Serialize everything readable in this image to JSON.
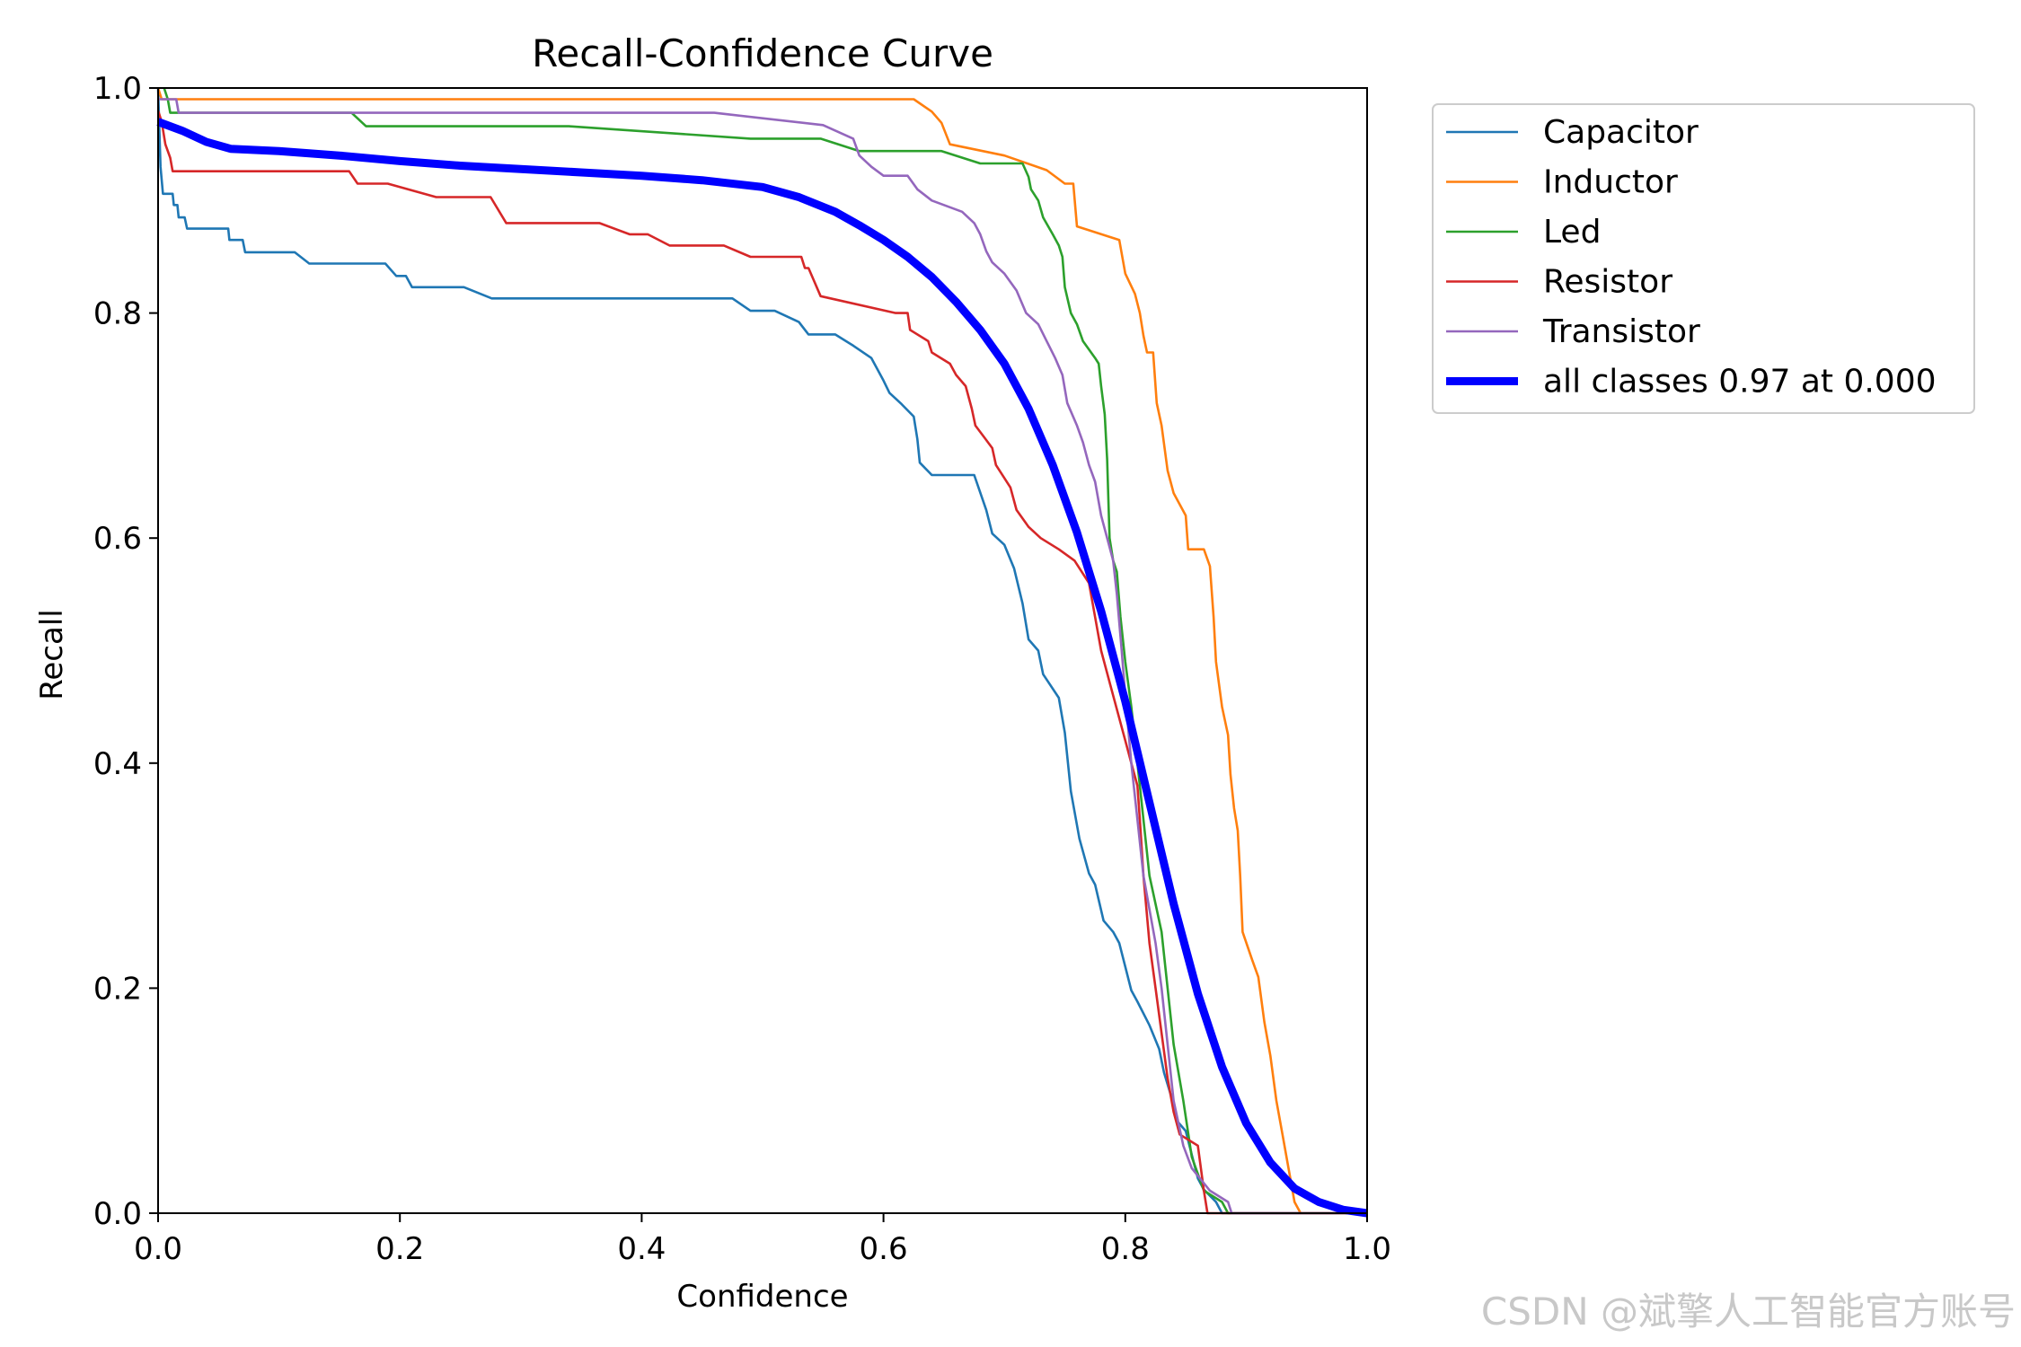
{
  "chart_data": {
    "type": "line",
    "title": "Recall-Confidence Curve",
    "xlabel": "Confidence",
    "ylabel": "Recall",
    "xlim": [
      0.0,
      1.0
    ],
    "ylim": [
      0.0,
      1.0
    ],
    "xticks": [
      "0.0",
      "0.2",
      "0.4",
      "0.6",
      "0.8",
      "1.0"
    ],
    "yticks": [
      "0.0",
      "0.2",
      "0.4",
      "0.6",
      "0.8",
      "1.0"
    ],
    "grid": false,
    "legend_position": "outside-top-right",
    "series": [
      {
        "name": "Capacitor",
        "color": "#1f77b4",
        "bold": false,
        "points": [
          [
            0,
            1.0
          ],
          [
            0.002,
            0.93
          ],
          [
            0.004,
            0.906
          ],
          [
            0.012,
            0.906
          ],
          [
            0.013,
            0.896
          ],
          [
            0.016,
            0.896
          ],
          [
            0.017,
            0.885
          ],
          [
            0.022,
            0.885
          ],
          [
            0.024,
            0.875
          ],
          [
            0.058,
            0.875
          ],
          [
            0.059,
            0.865
          ],
          [
            0.07,
            0.865
          ],
          [
            0.072,
            0.854
          ],
          [
            0.113,
            0.854
          ],
          [
            0.125,
            0.844
          ],
          [
            0.188,
            0.844
          ],
          [
            0.197,
            0.833
          ],
          [
            0.205,
            0.833
          ],
          [
            0.21,
            0.823
          ],
          [
            0.253,
            0.823
          ],
          [
            0.276,
            0.813
          ],
          [
            0.475,
            0.813
          ],
          [
            0.49,
            0.802
          ],
          [
            0.51,
            0.802
          ],
          [
            0.53,
            0.792
          ],
          [
            0.538,
            0.781
          ],
          [
            0.56,
            0.781
          ],
          [
            0.575,
            0.771
          ],
          [
            0.59,
            0.76
          ],
          [
            0.6,
            0.74
          ],
          [
            0.605,
            0.729
          ],
          [
            0.615,
            0.719
          ],
          [
            0.625,
            0.708
          ],
          [
            0.628,
            0.688
          ],
          [
            0.63,
            0.667
          ],
          [
            0.64,
            0.656
          ],
          [
            0.675,
            0.656
          ],
          [
            0.685,
            0.625
          ],
          [
            0.69,
            0.604
          ],
          [
            0.7,
            0.594
          ],
          [
            0.708,
            0.573
          ],
          [
            0.715,
            0.542
          ],
          [
            0.72,
            0.51
          ],
          [
            0.728,
            0.5
          ],
          [
            0.732,
            0.479
          ],
          [
            0.745,
            0.458
          ],
          [
            0.75,
            0.427
          ],
          [
            0.755,
            0.375
          ],
          [
            0.762,
            0.333
          ],
          [
            0.77,
            0.302
          ],
          [
            0.775,
            0.292
          ],
          [
            0.782,
            0.26
          ],
          [
            0.79,
            0.25
          ],
          [
            0.795,
            0.24
          ],
          [
            0.8,
            0.219
          ],
          [
            0.805,
            0.198
          ],
          [
            0.81,
            0.188
          ],
          [
            0.82,
            0.167
          ],
          [
            0.828,
            0.146
          ],
          [
            0.832,
            0.125
          ],
          [
            0.838,
            0.104
          ],
          [
            0.842,
            0.083
          ],
          [
            0.85,
            0.073
          ],
          [
            0.855,
            0.052
          ],
          [
            0.86,
            0.031
          ],
          [
            0.865,
            0.021
          ],
          [
            0.875,
            0.01
          ],
          [
            0.88,
            0.0
          ],
          [
            1.0,
            0.0
          ]
        ]
      },
      {
        "name": "Inductor",
        "color": "#ff7f0e",
        "bold": false,
        "points": [
          [
            0,
            1.0
          ],
          [
            0.003,
            0.99
          ],
          [
            0.625,
            0.99
          ],
          [
            0.64,
            0.979
          ],
          [
            0.648,
            0.969
          ],
          [
            0.655,
            0.95
          ],
          [
            0.7,
            0.94
          ],
          [
            0.735,
            0.927
          ],
          [
            0.75,
            0.915
          ],
          [
            0.757,
            0.915
          ],
          [
            0.76,
            0.877
          ],
          [
            0.795,
            0.865
          ],
          [
            0.8,
            0.835
          ],
          [
            0.808,
            0.817
          ],
          [
            0.812,
            0.8
          ],
          [
            0.815,
            0.78
          ],
          [
            0.818,
            0.765
          ],
          [
            0.823,
            0.765
          ],
          [
            0.826,
            0.72
          ],
          [
            0.83,
            0.7
          ],
          [
            0.835,
            0.66
          ],
          [
            0.84,
            0.64
          ],
          [
            0.85,
            0.62
          ],
          [
            0.852,
            0.59
          ],
          [
            0.865,
            0.59
          ],
          [
            0.87,
            0.575
          ],
          [
            0.873,
            0.53
          ],
          [
            0.875,
            0.49
          ],
          [
            0.88,
            0.45
          ],
          [
            0.885,
            0.425
          ],
          [
            0.887,
            0.39
          ],
          [
            0.89,
            0.36
          ],
          [
            0.893,
            0.34
          ],
          [
            0.895,
            0.3
          ],
          [
            0.897,
            0.25
          ],
          [
            0.905,
            0.225
          ],
          [
            0.91,
            0.21
          ],
          [
            0.915,
            0.17
          ],
          [
            0.92,
            0.14
          ],
          [
            0.925,
            0.1
          ],
          [
            0.93,
            0.07
          ],
          [
            0.935,
            0.04
          ],
          [
            0.94,
            0.01
          ],
          [
            0.945,
            0.0
          ],
          [
            1.0,
            0.0
          ]
        ]
      },
      {
        "name": "Led",
        "color": "#2ca02c",
        "bold": false,
        "points": [
          [
            0.005,
            1.0
          ],
          [
            0.008,
            0.99
          ],
          [
            0.01,
            0.978
          ],
          [
            0.16,
            0.978
          ],
          [
            0.172,
            0.966
          ],
          [
            0.34,
            0.966
          ],
          [
            0.49,
            0.955
          ],
          [
            0.548,
            0.955
          ],
          [
            0.58,
            0.944
          ],
          [
            0.648,
            0.944
          ],
          [
            0.68,
            0.933
          ],
          [
            0.715,
            0.933
          ],
          [
            0.72,
            0.921
          ],
          [
            0.722,
            0.91
          ],
          [
            0.728,
            0.9
          ],
          [
            0.732,
            0.885
          ],
          [
            0.74,
            0.87
          ],
          [
            0.745,
            0.86
          ],
          [
            0.748,
            0.85
          ],
          [
            0.75,
            0.823
          ],
          [
            0.755,
            0.8
          ],
          [
            0.76,
            0.79
          ],
          [
            0.765,
            0.775
          ],
          [
            0.775,
            0.76
          ],
          [
            0.778,
            0.755
          ],
          [
            0.78,
            0.735
          ],
          [
            0.783,
            0.71
          ],
          [
            0.785,
            0.67
          ],
          [
            0.787,
            0.6
          ],
          [
            0.79,
            0.58
          ],
          [
            0.793,
            0.57
          ],
          [
            0.796,
            0.53
          ],
          [
            0.8,
            0.49
          ],
          [
            0.805,
            0.45
          ],
          [
            0.81,
            0.4
          ],
          [
            0.815,
            0.35
          ],
          [
            0.82,
            0.3
          ],
          [
            0.83,
            0.25
          ],
          [
            0.835,
            0.2
          ],
          [
            0.84,
            0.15
          ],
          [
            0.848,
            0.1
          ],
          [
            0.855,
            0.05
          ],
          [
            0.865,
            0.02
          ],
          [
            0.88,
            0.01
          ],
          [
            0.885,
            0.0
          ],
          [
            1.0,
            0.0
          ]
        ]
      },
      {
        "name": "Resistor",
        "color": "#d62728",
        "bold": false,
        "points": [
          [
            0,
            0.98
          ],
          [
            0.003,
            0.97
          ],
          [
            0.006,
            0.95
          ],
          [
            0.01,
            0.938
          ],
          [
            0.012,
            0.926
          ],
          [
            0.158,
            0.926
          ],
          [
            0.165,
            0.915
          ],
          [
            0.19,
            0.915
          ],
          [
            0.23,
            0.903
          ],
          [
            0.275,
            0.903
          ],
          [
            0.288,
            0.88
          ],
          [
            0.365,
            0.88
          ],
          [
            0.39,
            0.87
          ],
          [
            0.405,
            0.87
          ],
          [
            0.423,
            0.86
          ],
          [
            0.468,
            0.86
          ],
          [
            0.49,
            0.85
          ],
          [
            0.532,
            0.85
          ],
          [
            0.535,
            0.84
          ],
          [
            0.538,
            0.84
          ],
          [
            0.542,
            0.83
          ],
          [
            0.548,
            0.815
          ],
          [
            0.61,
            0.8
          ],
          [
            0.62,
            0.8
          ],
          [
            0.622,
            0.785
          ],
          [
            0.637,
            0.775
          ],
          [
            0.64,
            0.765
          ],
          [
            0.655,
            0.755
          ],
          [
            0.66,
            0.745
          ],
          [
            0.668,
            0.735
          ],
          [
            0.673,
            0.715
          ],
          [
            0.676,
            0.7
          ],
          [
            0.683,
            0.69
          ],
          [
            0.69,
            0.68
          ],
          [
            0.693,
            0.665
          ],
          [
            0.705,
            0.645
          ],
          [
            0.71,
            0.625
          ],
          [
            0.72,
            0.61
          ],
          [
            0.73,
            0.6
          ],
          [
            0.745,
            0.59
          ],
          [
            0.758,
            0.58
          ],
          [
            0.77,
            0.56
          ],
          [
            0.78,
            0.5
          ],
          [
            0.785,
            0.48
          ],
          [
            0.79,
            0.46
          ],
          [
            0.8,
            0.42
          ],
          [
            0.805,
            0.4
          ],
          [
            0.81,
            0.38
          ],
          [
            0.812,
            0.35
          ],
          [
            0.815,
            0.3
          ],
          [
            0.82,
            0.24
          ],
          [
            0.825,
            0.2
          ],
          [
            0.83,
            0.16
          ],
          [
            0.835,
            0.12
          ],
          [
            0.84,
            0.09
          ],
          [
            0.845,
            0.07
          ],
          [
            0.86,
            0.06
          ],
          [
            0.865,
            0.02
          ],
          [
            0.868,
            0.0
          ],
          [
            1.0,
            0.0
          ]
        ]
      },
      {
        "name": "Transistor",
        "color": "#9467bd",
        "bold": false,
        "points": [
          [
            0,
            0.99
          ],
          [
            0.015,
            0.99
          ],
          [
            0.017,
            0.978
          ],
          [
            0.46,
            0.978
          ],
          [
            0.55,
            0.967
          ],
          [
            0.575,
            0.955
          ],
          [
            0.58,
            0.94
          ],
          [
            0.59,
            0.93
          ],
          [
            0.6,
            0.922
          ],
          [
            0.62,
            0.922
          ],
          [
            0.628,
            0.91
          ],
          [
            0.64,
            0.9
          ],
          [
            0.665,
            0.89
          ],
          [
            0.675,
            0.88
          ],
          [
            0.68,
            0.87
          ],
          [
            0.685,
            0.855
          ],
          [
            0.69,
            0.845
          ],
          [
            0.7,
            0.835
          ],
          [
            0.71,
            0.82
          ],
          [
            0.718,
            0.8
          ],
          [
            0.728,
            0.79
          ],
          [
            0.735,
            0.775
          ],
          [
            0.742,
            0.76
          ],
          [
            0.748,
            0.745
          ],
          [
            0.752,
            0.72
          ],
          [
            0.76,
            0.7
          ],
          [
            0.765,
            0.685
          ],
          [
            0.77,
            0.665
          ],
          [
            0.775,
            0.65
          ],
          [
            0.78,
            0.62
          ],
          [
            0.785,
            0.6
          ],
          [
            0.79,
            0.58
          ],
          [
            0.793,
            0.55
          ],
          [
            0.797,
            0.5
          ],
          [
            0.8,
            0.46
          ],
          [
            0.805,
            0.4
          ],
          [
            0.81,
            0.35
          ],
          [
            0.815,
            0.3
          ],
          [
            0.82,
            0.27
          ],
          [
            0.825,
            0.24
          ],
          [
            0.83,
            0.2
          ],
          [
            0.835,
            0.15
          ],
          [
            0.84,
            0.1
          ],
          [
            0.848,
            0.06
          ],
          [
            0.855,
            0.04
          ],
          [
            0.87,
            0.02
          ],
          [
            0.885,
            0.01
          ],
          [
            0.888,
            0.0
          ],
          [
            1.0,
            0.0
          ]
        ]
      },
      {
        "name": "all classes 0.97 at 0.000",
        "color": "#0000ff",
        "bold": true,
        "points": [
          [
            0,
            0.97
          ],
          [
            0.02,
            0.962
          ],
          [
            0.04,
            0.952
          ],
          [
            0.06,
            0.946
          ],
          [
            0.1,
            0.944
          ],
          [
            0.15,
            0.94
          ],
          [
            0.2,
            0.935
          ],
          [
            0.25,
            0.931
          ],
          [
            0.3,
            0.928
          ],
          [
            0.35,
            0.925
          ],
          [
            0.4,
            0.922
          ],
          [
            0.45,
            0.918
          ],
          [
            0.5,
            0.912
          ],
          [
            0.53,
            0.903
          ],
          [
            0.56,
            0.89
          ],
          [
            0.58,
            0.878
          ],
          [
            0.6,
            0.865
          ],
          [
            0.62,
            0.85
          ],
          [
            0.64,
            0.832
          ],
          [
            0.66,
            0.81
          ],
          [
            0.68,
            0.785
          ],
          [
            0.7,
            0.755
          ],
          [
            0.72,
            0.715
          ],
          [
            0.74,
            0.665
          ],
          [
            0.76,
            0.605
          ],
          [
            0.78,
            0.535
          ],
          [
            0.8,
            0.455
          ],
          [
            0.82,
            0.365
          ],
          [
            0.84,
            0.275
          ],
          [
            0.86,
            0.195
          ],
          [
            0.88,
            0.13
          ],
          [
            0.9,
            0.08
          ],
          [
            0.92,
            0.045
          ],
          [
            0.94,
            0.022
          ],
          [
            0.96,
            0.01
          ],
          [
            0.98,
            0.003
          ],
          [
            1.0,
            0.0
          ]
        ]
      }
    ]
  },
  "watermark": "CSDN @斌擎人工智能官方账号"
}
